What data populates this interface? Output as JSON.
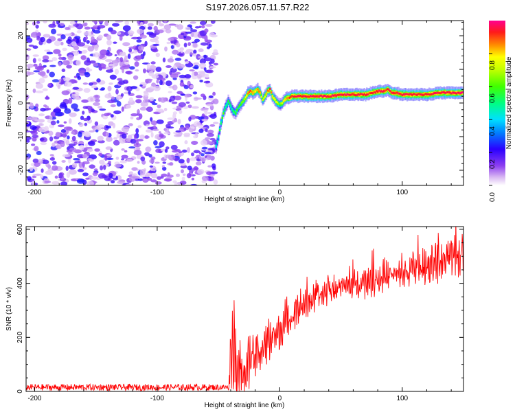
{
  "figure": {
    "title": "S197.2026.057.11.57.R22"
  },
  "chart_data": [
    {
      "type": "heatmap",
      "title": "S197.2026.057.11.57.R22",
      "xlabel": "Height of straight line (km)",
      "ylabel": "Frequency (Hz)",
      "xlim": [
        -207,
        150
      ],
      "ylim": [
        -24.5,
        24.5
      ],
      "xticks": [
        -200,
        -100,
        0,
        100
      ],
      "xtick_labels": [
        "-200",
        "-100",
        "0",
        "100"
      ],
      "yticks": [
        -20,
        -10,
        0,
        10,
        20
      ],
      "ytick_labels": [
        "-20",
        "-10",
        "0",
        "10",
        "20"
      ],
      "noise_region": {
        "x_from": -207,
        "x_to": -52,
        "description_level": "low amplitude speckle 0.1-0.3"
      },
      "ridge": {
        "x": [
          -52,
          -50,
          -48,
          -46,
          -44,
          -42,
          -40,
          -38,
          -36,
          -34,
          -32,
          -30,
          -28,
          -26,
          -24,
          -22,
          -20,
          -18,
          -16,
          -14,
          -12,
          -10,
          -8,
          -6,
          -4,
          -2,
          0,
          2,
          4,
          6,
          8,
          10,
          15,
          20,
          30,
          40,
          50,
          60,
          70,
          75,
          80,
          85,
          88,
          92,
          95,
          100,
          110,
          120,
          130,
          140,
          150
        ],
        "y": [
          -13,
          -10,
          -6,
          -3,
          -1,
          0.5,
          -1,
          -2.5,
          -3,
          -1.5,
          -0.5,
          0.5,
          1.5,
          3,
          3.5,
          3,
          3.5,
          4,
          3,
          1,
          2,
          3.5,
          4,
          2,
          1,
          0,
          -0.5,
          0,
          1,
          1.5,
          1.5,
          2,
          2,
          2,
          2,
          2,
          2.5,
          2.5,
          2.5,
          3,
          3.5,
          3.5,
          4,
          3,
          3,
          2.5,
          2.5,
          2.5,
          3,
          3,
          3
        ],
        "amplitude": [
          0.45,
          0.5,
          0.55,
          0.6,
          0.5,
          0.55,
          0.5,
          0.5,
          0.6,
          0.55,
          0.6,
          0.65,
          0.75,
          0.85,
          0.9,
          0.85,
          0.8,
          0.85,
          0.8,
          0.7,
          0.75,
          0.85,
          0.9,
          0.8,
          0.75,
          0.7,
          0.6,
          0.7,
          0.8,
          0.85,
          0.9,
          0.9,
          0.95,
          0.95,
          0.95,
          0.95,
          0.95,
          0.95,
          0.95,
          0.9,
          0.95,
          0.95,
          0.9,
          0.95,
          0.95,
          0.95,
          0.95,
          0.95,
          0.95,
          0.95,
          0.95
        ]
      },
      "colorbar": {
        "label": "Normalized spectral amplitude",
        "range": [
          0,
          1
        ],
        "ticks": [
          0.0,
          0.2,
          0.4,
          0.6,
          0.8
        ],
        "tick_labels": [
          "0.0",
          "0.2",
          "0.4",
          "0.6",
          "0.8"
        ]
      }
    },
    {
      "type": "line",
      "xlabel": "Height of straight line (km)",
      "ylabel": "SNR (10 * v/v)",
      "xlim": [
        -207,
        150
      ],
      "ylim": [
        0,
        610
      ],
      "xticks": [
        -200,
        -100,
        0,
        100
      ],
      "xtick_labels": [
        "-200",
        "-100",
        "0",
        "100"
      ],
      "yticks": [
        0,
        200,
        400,
        600
      ],
      "ytick_labels": [
        "0",
        "200",
        "400",
        "600"
      ],
      "series": [
        {
          "name": "SNR",
          "color": "#ff0000",
          "x": [
            -207,
            -150,
            -100,
            -60,
            -42,
            -40,
            -38,
            -35,
            -32,
            -30,
            -27,
            -25,
            -20,
            -15,
            -10,
            -5,
            0,
            5,
            10,
            15,
            20,
            30,
            40,
            50,
            60,
            70,
            80,
            90,
            100,
            110,
            120,
            130,
            140,
            150
          ],
          "y_mean": [
            15,
            15,
            15,
            15,
            15,
            120,
            170,
            100,
            60,
            40,
            70,
            110,
            130,
            150,
            180,
            200,
            220,
            250,
            280,
            300,
            320,
            345,
            370,
            385,
            395,
            405,
            415,
            425,
            435,
            450,
            460,
            475,
            490,
            505
          ],
          "y_amp": [
            12,
            12,
            12,
            12,
            10,
            110,
            150,
            130,
            90,
            60,
            70,
            80,
            80,
            80,
            70,
            60,
            60,
            55,
            55,
            50,
            50,
            45,
            45,
            45,
            45,
            50,
            50,
            50,
            55,
            55,
            60,
            60,
            65,
            70
          ]
        }
      ]
    }
  ]
}
